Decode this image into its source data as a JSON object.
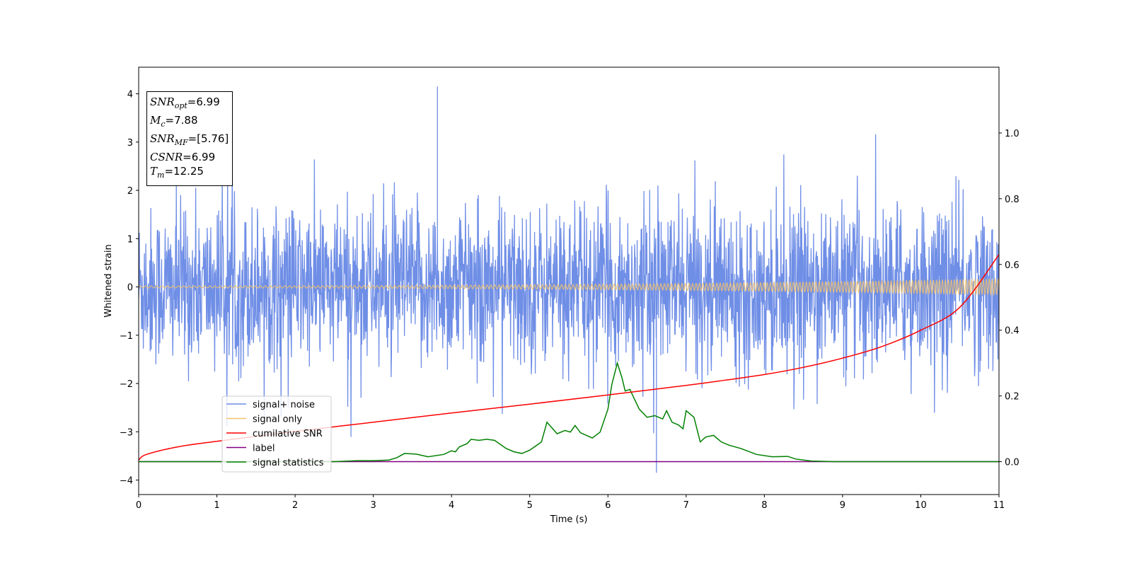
{
  "chart_data": {
    "type": "line",
    "xlabel": "Time (s)",
    "ylabel": "Whitened strain",
    "xlim": [
      0,
      11
    ],
    "ylim_left": [
      -4.3,
      4.55
    ],
    "ylim_right": [
      -0.1,
      1.2
    ],
    "x_ticks": [
      "0",
      "1",
      "2",
      "3",
      "4",
      "5",
      "6",
      "7",
      "8",
      "9",
      "10",
      "11"
    ],
    "y_left_ticks": [
      "−4",
      "−3",
      "−2",
      "−1",
      "0",
      "1",
      "2",
      "3",
      "4"
    ],
    "y_right_ticks": [
      "0.0",
      "0.2",
      "0.4",
      "0.6",
      "0.8",
      "1.0"
    ],
    "legend_position": "lower-left",
    "grid": false,
    "series": [
      {
        "name": "signal+ noise",
        "axis": "left",
        "color": "#6f8ee6",
        "description": "noise band, roughly ±1.3 with spikes to about ±3.5; peak 4.15 near t=3.8, minimum -3.85 near t=6.6",
        "envelope": {
          "typical_amplitude": 1.3,
          "max": 4.15,
          "max_x": 3.82,
          "min": -3.85,
          "min_x": 6.62
        }
      },
      {
        "name": "signal only",
        "axis": "left",
        "color": "#f5c36b",
        "description": "chirp oscillation around 0, amplitude growing from ~0.02 at t=0 to ~0.16 at t=11",
        "amplitude_start": 0.02,
        "amplitude_end": 0.16
      },
      {
        "name": "cumilative SNR",
        "axis": "right",
        "color": "#ff0000",
        "x": [
          0,
          0.1,
          0.5,
          1,
          2,
          3,
          4,
          5,
          6,
          7,
          7.5,
          8,
          8.5,
          9,
          9.5,
          10,
          10.5,
          11
        ],
        "values": [
          0.005,
          0.022,
          0.045,
          0.062,
          0.092,
          0.12,
          0.148,
          0.175,
          0.203,
          0.232,
          0.248,
          0.265,
          0.287,
          0.315,
          0.35,
          0.4,
          0.47,
          0.63
        ]
      },
      {
        "name": "label",
        "axis": "right",
        "color": "#800080",
        "x": [
          0,
          11
        ],
        "values": [
          0,
          0
        ]
      },
      {
        "name": "signal statistics",
        "axis": "right",
        "color": "#008000",
        "x": [
          0,
          0.5,
          1,
          1.5,
          2,
          2.5,
          2.8,
          3,
          3.2,
          3.3,
          3.4,
          3.55,
          3.7,
          3.9,
          4.0,
          4.05,
          4.1,
          4.2,
          4.25,
          4.35,
          4.45,
          4.55,
          4.7,
          4.8,
          4.9,
          5.0,
          5.15,
          5.22,
          5.35,
          5.45,
          5.52,
          5.58,
          5.65,
          5.8,
          5.9,
          6.0,
          6.05,
          6.12,
          6.18,
          6.22,
          6.28,
          6.4,
          6.5,
          6.6,
          6.7,
          6.75,
          6.82,
          6.9,
          6.96,
          7.0,
          7.1,
          7.18,
          7.25,
          7.35,
          7.45,
          7.55,
          7.7,
          7.9,
          8.1,
          8.3,
          8.4,
          8.6,
          8.9,
          9.5,
          10,
          10.5,
          11
        ],
        "values": [
          0.0,
          0.0,
          0.0,
          0.0,
          0.0,
          0.0,
          0.003,
          0.003,
          0.005,
          0.012,
          0.025,
          0.023,
          0.015,
          0.022,
          0.033,
          0.03,
          0.045,
          0.055,
          0.068,
          0.065,
          0.068,
          0.065,
          0.04,
          0.03,
          0.025,
          0.035,
          0.06,
          0.12,
          0.085,
          0.095,
          0.09,
          0.11,
          0.088,
          0.072,
          0.09,
          0.16,
          0.235,
          0.3,
          0.255,
          0.215,
          0.22,
          0.16,
          0.135,
          0.14,
          0.13,
          0.155,
          0.12,
          0.112,
          0.1,
          0.155,
          0.135,
          0.06,
          0.075,
          0.08,
          0.06,
          0.05,
          0.04,
          0.022,
          0.015,
          0.016,
          0.008,
          0.002,
          0.0,
          0.0,
          0.0,
          0.0,
          0.0
        ]
      }
    ]
  },
  "infobox": {
    "snr_opt": {
      "sym": "SNR",
      "sub": "opt",
      "value": "=6.99"
    },
    "mc": {
      "sym": "M",
      "sub": "c",
      "value": "=7.88"
    },
    "snr_mf": {
      "sym": "SNR",
      "sub": "MF",
      "value": "=[5.76]"
    },
    "csnr": {
      "sym": "CSNR",
      "value": "=6.99"
    },
    "tm": {
      "sym": "T",
      "sub": "m",
      "value": "=12.25"
    }
  }
}
